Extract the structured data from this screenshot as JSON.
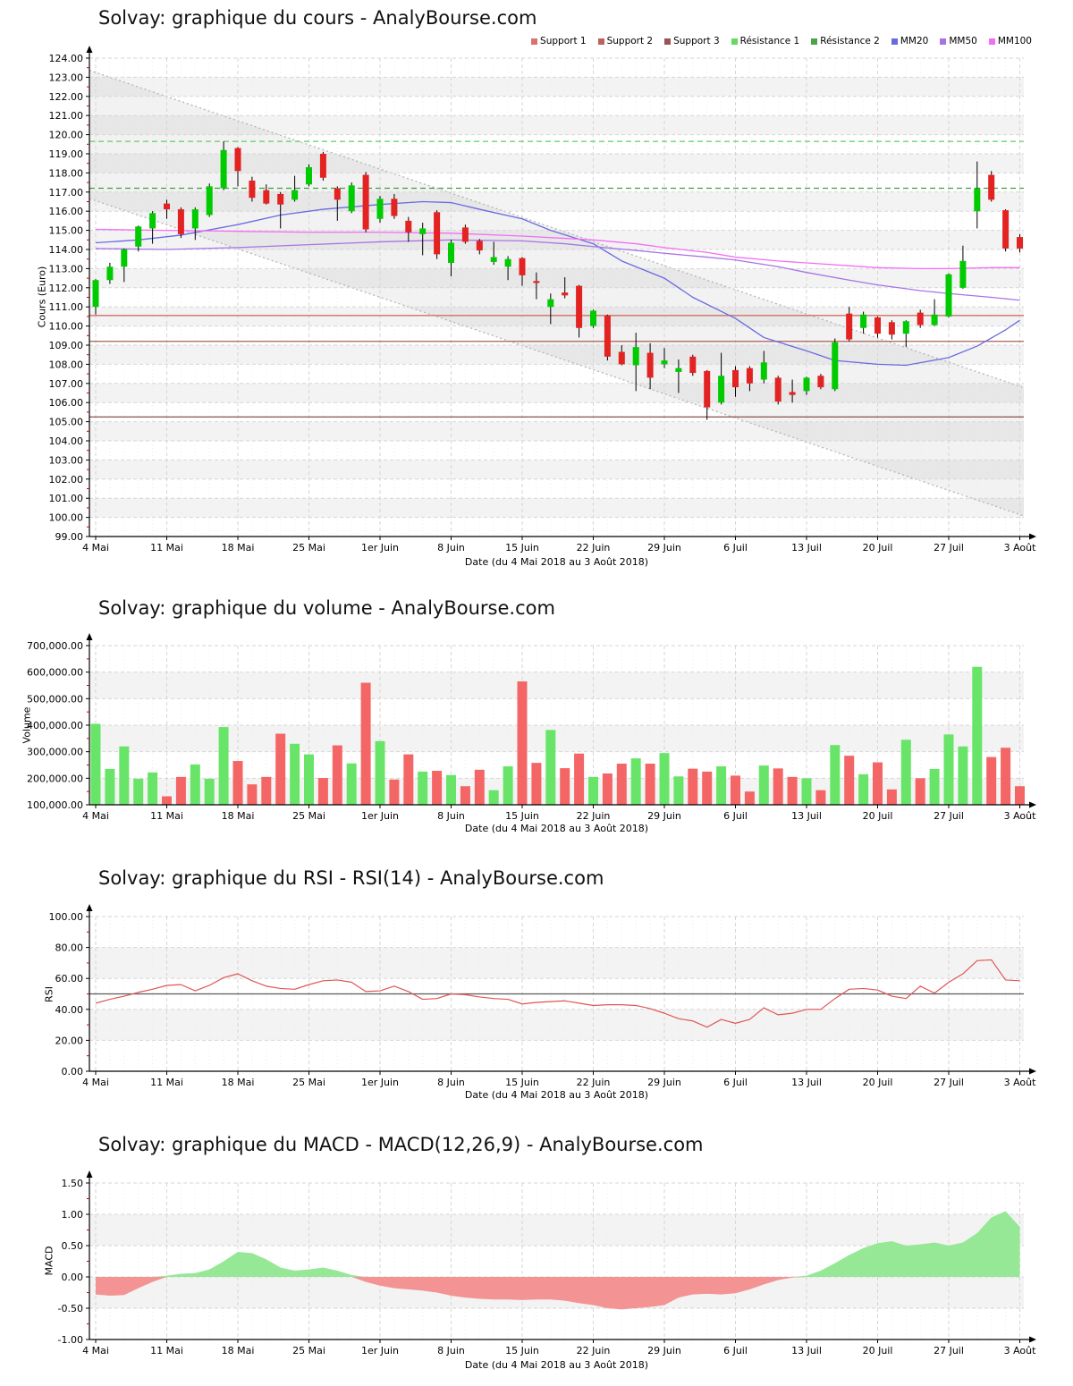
{
  "x_axis": {
    "caption": "Date (du 4 Mai 2018 au 3 Août 2018)",
    "tick_labels": [
      "4 Mai",
      "11 Mai",
      "18 Mai",
      "25 Mai",
      "1er Juin",
      "8 Juin",
      "15 Juin",
      "22 Juin",
      "29 Juin",
      "6 Juil",
      "13 Juil",
      "20 Juil",
      "27 Juil",
      "3 Août"
    ]
  },
  "chart_data": [
    {
      "type": "candlestick",
      "title": "Solvay: graphique du cours - AnalyBourse.com",
      "ylabel": "Cours (Euro)",
      "xlabel": "Date (du 4 Mai 2018 au 3 Août 2018)",
      "ylim": [
        99,
        124
      ],
      "ytick_step": 1,
      "up_color": "#00cb00",
      "down_color": "#e32222",
      "wick_color": "#000000",
      "legend": [
        {
          "label": "Support 1",
          "color": "#d87470"
        },
        {
          "label": "Support 2",
          "color": "#b86262"
        },
        {
          "label": "Support 3",
          "color": "#9a5454"
        },
        {
          "label": "Résistance 1",
          "color": "#66d866"
        },
        {
          "label": "Résistance 2",
          "color": "#4aa44a"
        },
        {
          "label": "MM20",
          "color": "#6a6ae0"
        },
        {
          "label": "MM50",
          "color": "#a873e8"
        },
        {
          "label": "MM100",
          "color": "#f46ef4"
        }
      ],
      "support_levels": [
        {
          "name": "Support 1",
          "value": 110.55,
          "color": "#cc7068"
        },
        {
          "name": "Support 2",
          "value": 109.2,
          "color": "#aa5f58"
        },
        {
          "name": "Support 3",
          "value": 105.25,
          "color": "#8d4f4a"
        }
      ],
      "resistance_levels": [
        {
          "name": "Résistance 1",
          "value": 119.65,
          "color": "#5ed05e"
        },
        {
          "name": "Résistance 2",
          "value": 117.2,
          "color": "#3fa03f"
        }
      ],
      "regression_channel": {
        "upper_start": 123.25,
        "upper_end": 106.85,
        "lower_start": 116.55,
        "lower_end": 100.15
      },
      "moving_averages": [
        {
          "name": "MM20",
          "color": "#6a6ae0",
          "points": [
            [
              0,
              114.35
            ],
            [
              3,
              114.5
            ],
            [
              6,
              114.75
            ],
            [
              10,
              115.3
            ],
            [
              13,
              115.8
            ],
            [
              16,
              116.1
            ],
            [
              20,
              116.35
            ],
            [
              23,
              116.5
            ],
            [
              25,
              116.45
            ],
            [
              27,
              116.1
            ],
            [
              30,
              115.6
            ],
            [
              32,
              115.0
            ],
            [
              35,
              114.3
            ],
            [
              37,
              113.4
            ],
            [
              40,
              112.5
            ],
            [
              42,
              111.5
            ],
            [
              45,
              110.4
            ],
            [
              47,
              109.4
            ],
            [
              50,
              108.7
            ],
            [
              52,
              108.2
            ],
            [
              55,
              108.0
            ],
            [
              57,
              107.95
            ],
            [
              60,
              108.35
            ],
            [
              62,
              108.95
            ],
            [
              64,
              109.8
            ],
            [
              65,
              110.3
            ]
          ]
        },
        {
          "name": "MM50",
          "color": "#a873e8",
          "points": [
            [
              0,
              114.05
            ],
            [
              5,
              114.0
            ],
            [
              10,
              114.1
            ],
            [
              15,
              114.25
            ],
            [
              20,
              114.4
            ],
            [
              25,
              114.5
            ],
            [
              30,
              114.45
            ],
            [
              33,
              114.3
            ],
            [
              35,
              114.15
            ],
            [
              38,
              113.95
            ],
            [
              40,
              113.8
            ],
            [
              43,
              113.6
            ],
            [
              45,
              113.45
            ],
            [
              48,
              113.1
            ],
            [
              50,
              112.8
            ],
            [
              53,
              112.4
            ],
            [
              55,
              112.15
            ],
            [
              58,
              111.85
            ],
            [
              60,
              111.7
            ],
            [
              63,
              111.5
            ],
            [
              65,
              111.35
            ]
          ]
        },
        {
          "name": "MM100",
          "color": "#f46ef4",
          "points": [
            [
              0,
              115.05
            ],
            [
              5,
              115.0
            ],
            [
              10,
              114.95
            ],
            [
              15,
              114.9
            ],
            [
              20,
              114.9
            ],
            [
              25,
              114.85
            ],
            [
              30,
              114.7
            ],
            [
              35,
              114.5
            ],
            [
              38,
              114.3
            ],
            [
              40,
              114.1
            ],
            [
              43,
              113.85
            ],
            [
              45,
              113.6
            ],
            [
              48,
              113.4
            ],
            [
              50,
              113.3
            ],
            [
              53,
              113.15
            ],
            [
              55,
              113.05
            ],
            [
              58,
              113.0
            ],
            [
              60,
              113.0
            ],
            [
              63,
              113.05
            ],
            [
              65,
              113.05
            ]
          ]
        }
      ],
      "dates": [
        "4 Mai",
        "7 Mai",
        "8 Mai",
        "9 Mai",
        "10 Mai",
        "11 Mai",
        "14 Mai",
        "15 Mai",
        "16 Mai",
        "17 Mai",
        "18 Mai",
        "21 Mai",
        "22 Mai",
        "23 Mai",
        "24 Mai",
        "25 Mai",
        "28 Mai",
        "29 Mai",
        "30 Mai",
        "31 Mai",
        "1 Juin",
        "4 Juin",
        "5 Juin",
        "6 Juin",
        "7 Juin",
        "8 Juin",
        "11 Juin",
        "12 Juin",
        "13 Juin",
        "14 Juin",
        "15 Juin",
        "18 Juin",
        "19 Juin",
        "20 Juin",
        "21 Juin",
        "22 Juin",
        "25 Juin",
        "26 Juin",
        "27 Juin",
        "28 Juin",
        "29 Juin",
        "2 Juil",
        "3 Juil",
        "4 Juil",
        "5 Juil",
        "6 Juil",
        "9 Juil",
        "10 Juil",
        "11 Juil",
        "12 Juil",
        "13 Juil",
        "16 Juil",
        "17 Juil",
        "18 Juil",
        "19 Juil",
        "20 Juil",
        "23 Juil",
        "24 Juil",
        "25 Juil",
        "26 Juil",
        "27 Juil",
        "30 Juil",
        "31 Juil",
        "1 Août",
        "2 Août",
        "3 Août"
      ],
      "candles_ohlc": [
        [
          111.0,
          112.45,
          110.6,
          112.4
        ],
        [
          112.4,
          113.3,
          112.2,
          113.1
        ],
        [
          113.1,
          114.05,
          112.3,
          114.0
        ],
        [
          114.15,
          115.25,
          113.9,
          115.2
        ],
        [
          115.1,
          116.0,
          114.3,
          115.9
        ],
        [
          116.4,
          116.6,
          115.6,
          116.1
        ],
        [
          116.1,
          116.2,
          114.6,
          114.8
        ],
        [
          115.1,
          116.2,
          114.5,
          116.1
        ],
        [
          115.8,
          117.45,
          115.7,
          117.3
        ],
        [
          117.2,
          119.65,
          117.1,
          119.2
        ],
        [
          119.3,
          119.35,
          117.3,
          118.1
        ],
        [
          117.6,
          117.8,
          116.5,
          116.7
        ],
        [
          117.1,
          117.4,
          116.35,
          116.4
        ],
        [
          116.9,
          117.0,
          115.1,
          116.35
        ],
        [
          116.6,
          117.85,
          116.5,
          117.1
        ],
        [
          117.4,
          118.45,
          117.3,
          118.3
        ],
        [
          119.0,
          119.1,
          117.6,
          117.75
        ],
        [
          117.2,
          117.3,
          115.5,
          116.6
        ],
        [
          116.0,
          117.5,
          115.9,
          117.35
        ],
        [
          117.9,
          118.05,
          114.9,
          115.05
        ],
        [
          115.6,
          116.8,
          115.4,
          116.65
        ],
        [
          116.65,
          116.9,
          115.6,
          115.75
        ],
        [
          115.5,
          115.7,
          114.4,
          114.9
        ],
        [
          114.8,
          115.4,
          113.7,
          115.1
        ],
        [
          115.95,
          116.05,
          113.5,
          113.75
        ],
        [
          113.3,
          114.5,
          112.6,
          114.35
        ],
        [
          115.15,
          115.3,
          114.3,
          114.4
        ],
        [
          114.45,
          114.55,
          113.75,
          113.95
        ],
        [
          113.35,
          114.4,
          113.2,
          113.6
        ],
        [
          113.1,
          113.65,
          112.4,
          113.5
        ],
        [
          113.55,
          113.6,
          112.1,
          112.65
        ],
        [
          112.35,
          112.8,
          111.4,
          112.25
        ],
        [
          111.0,
          111.7,
          110.1,
          111.4
        ],
        [
          111.75,
          112.55,
          111.45,
          111.6
        ],
        [
          112.1,
          112.15,
          109.4,
          109.9
        ],
        [
          110.0,
          110.85,
          109.9,
          110.8
        ],
        [
          110.55,
          110.6,
          108.2,
          108.4
        ],
        [
          108.65,
          109.0,
          107.95,
          108.0
        ],
        [
          107.95,
          109.65,
          106.6,
          108.9
        ],
        [
          108.6,
          109.1,
          106.7,
          107.3
        ],
        [
          108.0,
          108.85,
          107.8,
          108.2
        ],
        [
          107.6,
          108.25,
          106.5,
          107.8
        ],
        [
          108.4,
          108.5,
          107.4,
          107.55
        ],
        [
          107.65,
          107.7,
          105.1,
          105.75
        ],
        [
          106.0,
          108.6,
          105.9,
          107.4
        ],
        [
          107.7,
          107.9,
          106.3,
          106.8
        ],
        [
          107.8,
          107.9,
          106.6,
          107.0
        ],
        [
          107.2,
          108.7,
          107.0,
          108.1
        ],
        [
          107.3,
          107.4,
          105.9,
          106.05
        ],
        [
          106.55,
          107.2,
          106.0,
          106.4
        ],
        [
          106.6,
          107.35,
          106.4,
          107.3
        ],
        [
          107.4,
          107.5,
          106.7,
          106.8
        ],
        [
          106.7,
          109.35,
          106.6,
          109.15
        ],
        [
          110.65,
          111.0,
          109.2,
          109.3
        ],
        [
          109.9,
          110.75,
          109.6,
          110.6
        ],
        [
          110.45,
          110.5,
          109.4,
          109.6
        ],
        [
          110.2,
          110.3,
          109.3,
          109.55
        ],
        [
          109.6,
          110.3,
          108.9,
          110.25
        ],
        [
          110.7,
          110.85,
          109.9,
          110.05
        ],
        [
          110.05,
          111.4,
          110.0,
          110.6
        ],
        [
          110.5,
          112.75,
          110.45,
          112.7
        ],
        [
          112.0,
          114.2,
          111.95,
          113.4
        ],
        [
          116.0,
          118.6,
          115.1,
          117.2
        ],
        [
          117.9,
          118.1,
          116.5,
          116.6
        ],
        [
          116.05,
          116.1,
          113.9,
          114.05
        ],
        [
          114.65,
          114.8,
          113.85,
          114.05
        ]
      ]
    },
    {
      "type": "bar",
      "title": "Solvay: graphique du volume - AnalyBourse.com",
      "ylabel": "Volume",
      "xlabel": "Date (du 4 Mai 2018 au 3 Août 2018)",
      "ylim": [
        100000,
        700000
      ],
      "ytick_step": 100000,
      "up_color": "#68e568",
      "down_color": "#f46666",
      "values": [
        405000,
        235000,
        320000,
        198000,
        222000,
        132000,
        205000,
        252000,
        198000,
        393000,
        265000,
        177000,
        205000,
        368000,
        330000,
        290000,
        201000,
        324000,
        256000,
        560000,
        340000,
        195000,
        290000,
        225000,
        228000,
        212000,
        170000,
        232000,
        155000,
        245000,
        565000,
        258000,
        382000,
        238000,
        293000,
        205000,
        218000,
        255000,
        275000,
        255000,
        295000,
        207000,
        236000,
        225000,
        245000,
        210000,
        150000,
        248000,
        237000,
        205000,
        200000,
        155000,
        325000,
        285000,
        215000,
        260000,
        158000,
        345000,
        200000,
        235000,
        365000,
        320000,
        620000,
        280000,
        315000,
        170000
      ]
    },
    {
      "type": "line",
      "title": "Solvay: graphique du RSI - RSI(14) - AnalyBourse.com",
      "ylabel": "RSI",
      "xlabel": "Date (du 4 Mai 2018 au 3 Août 2018)",
      "ylim": [
        0,
        100
      ],
      "ytick_step": 20,
      "line_color": "#e05555",
      "midline": {
        "value": 50,
        "color": "#5a5a5a"
      },
      "values": [
        44,
        46.5,
        48.5,
        51,
        53,
        55.5,
        56,
        52,
        55.5,
        60.5,
        63,
        58.5,
        55,
        53.5,
        53,
        56,
        58.5,
        59,
        57.5,
        51.5,
        52,
        55,
        51.5,
        46.5,
        47,
        50,
        49.5,
        48,
        47,
        46.5,
        43.5,
        44.5,
        45,
        45.5,
        44,
        42.5,
        43,
        43,
        42.5,
        40.5,
        37.5,
        34,
        32.5,
        28.5,
        33.5,
        31,
        33.5,
        41,
        36.5,
        37.5,
        40,
        40,
        47,
        53,
        53.5,
        52.5,
        48.5,
        47,
        55,
        50.5,
        57.5,
        63,
        71.5,
        72,
        59,
        58.5
      ]
    },
    {
      "type": "area",
      "title": "Solvay: graphique du MACD - MACD(12,26,9) - AnalyBourse.com",
      "ylabel": "MACD",
      "xlabel": "Date (du 4 Mai 2018 au 3 Août 2018)",
      "ylim": [
        -1.0,
        1.5
      ],
      "ytick_step": 0.5,
      "pos_color": "#96e896",
      "neg_color": "#f49393",
      "values": [
        -0.28,
        -0.3,
        -0.29,
        -0.18,
        -0.08,
        0.02,
        0.05,
        0.06,
        0.12,
        0.25,
        0.4,
        0.38,
        0.28,
        0.15,
        0.1,
        0.12,
        0.15,
        0.1,
        0.03,
        -0.08,
        -0.14,
        -0.18,
        -0.2,
        -0.22,
        -0.25,
        -0.3,
        -0.33,
        -0.35,
        -0.36,
        -0.36,
        -0.37,
        -0.36,
        -0.36,
        -0.38,
        -0.42,
        -0.45,
        -0.5,
        -0.52,
        -0.5,
        -0.48,
        -0.45,
        -0.33,
        -0.28,
        -0.27,
        -0.28,
        -0.26,
        -0.2,
        -0.12,
        -0.05,
        -0.01,
        0.02,
        0.1,
        0.22,
        0.35,
        0.46,
        0.54,
        0.57,
        0.5,
        0.52,
        0.55,
        0.5,
        0.55,
        0.7,
        0.95,
        1.05,
        0.8
      ]
    }
  ]
}
